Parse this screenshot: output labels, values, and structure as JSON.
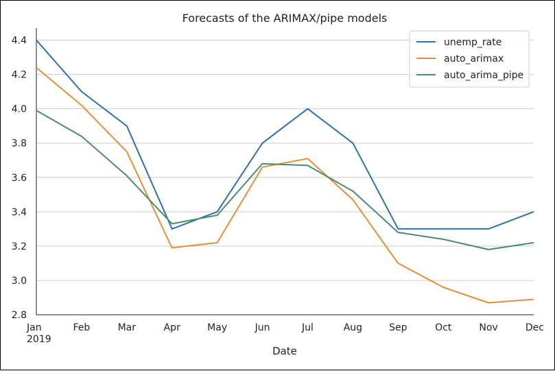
{
  "chart_data": {
    "type": "line",
    "title": "Forecasts of the ARIMAX/pipe models",
    "xlabel": "Date",
    "ylabel": "",
    "categories": [
      "Jan",
      "Feb",
      "Mar",
      "Apr",
      "May",
      "Jun",
      "Jul",
      "Aug",
      "Sep",
      "Oct",
      "Nov",
      "Dec"
    ],
    "year_label": "2019",
    "ylim": [
      2.8,
      4.45
    ],
    "yticks": [
      "2.8",
      "3.0",
      "3.2",
      "3.4",
      "3.6",
      "3.8",
      "4.0",
      "4.2",
      "4.4"
    ],
    "grid": "horizontal",
    "legend_position": "top-right",
    "series": [
      {
        "name": "unemp_rate",
        "color": "#2f6fa8",
        "values": [
          4.4,
          4.1,
          3.9,
          3.3,
          3.4,
          3.8,
          4.0,
          3.8,
          3.3,
          3.3,
          3.3,
          3.4
        ]
      },
      {
        "name": "auto_arimax",
        "color": "#e0903a",
        "values": [
          4.24,
          4.02,
          3.75,
          3.19,
          3.22,
          3.66,
          3.71,
          3.47,
          3.1,
          2.96,
          2.87,
          2.89
        ]
      },
      {
        "name": "auto_arima_pipe",
        "color": "#4a8a6e",
        "values": [
          3.99,
          3.84,
          3.61,
          3.33,
          3.38,
          3.68,
          3.67,
          3.52,
          3.28,
          3.24,
          3.18,
          3.22
        ]
      }
    ]
  }
}
